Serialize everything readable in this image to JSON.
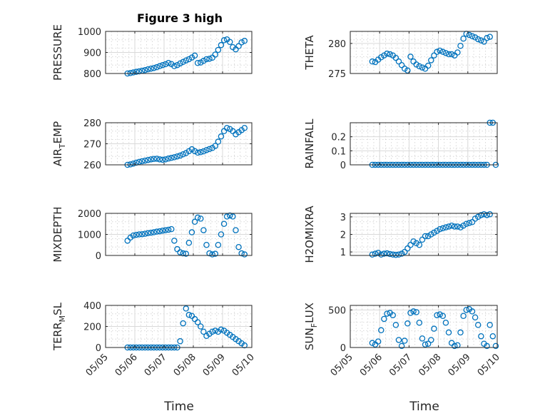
{
  "chart_data": {
    "type": "scatter",
    "title": "Figure 3 high",
    "marker": "circle",
    "color": "#0072bd",
    "grid": "major and minor",
    "x_axis": {
      "label": "Time",
      "ticks": [
        "05/05",
        "05/06",
        "05/07",
        "05/08",
        "05/09",
        "05/10"
      ],
      "range_days": [
        0,
        5
      ]
    },
    "panels": [
      {
        "id": "pressure",
        "ylabel": "PRESSURE",
        "ylim": [
          800,
          1000
        ],
        "yticks": [
          800,
          900,
          1000
        ],
        "x": [
          0.75,
          0.85,
          0.95,
          1.05,
          1.15,
          1.25,
          1.35,
          1.45,
          1.55,
          1.65,
          1.75,
          1.85,
          1.95,
          2.05,
          2.15,
          2.25,
          2.35,
          2.45,
          2.55,
          2.65,
          2.75,
          2.85,
          2.95,
          3.05,
          3.15,
          3.25,
          3.35,
          3.45,
          3.55,
          3.65,
          3.75,
          3.85,
          3.95,
          4.05,
          4.15,
          4.25,
          4.35,
          4.45,
          4.55,
          4.65,
          4.75
        ],
        "y": [
          800,
          802,
          805,
          808,
          810,
          813,
          816,
          820,
          823,
          826,
          830,
          835,
          840,
          844,
          850,
          845,
          835,
          840,
          848,
          855,
          862,
          868,
          876,
          885,
          850,
          852,
          860,
          868,
          870,
          875,
          890,
          912,
          935,
          958,
          962,
          950,
          925,
          915,
          930,
          948,
          955
        ]
      },
      {
        "id": "theta",
        "ylabel": "THETA",
        "ylim": [
          275,
          282
        ],
        "yticks": [
          275,
          280
        ],
        "x": [
          0.75,
          0.85,
          0.95,
          1.05,
          1.15,
          1.25,
          1.35,
          1.45,
          1.55,
          1.65,
          1.75,
          1.85,
          1.95,
          2.05,
          2.15,
          2.25,
          2.35,
          2.45,
          2.55,
          2.65,
          2.75,
          2.85,
          2.95,
          3.05,
          3.15,
          3.25,
          3.35,
          3.45,
          3.55,
          3.65,
          3.75,
          3.85,
          3.95,
          4.05,
          4.15,
          4.25,
          4.35,
          4.45,
          4.55,
          4.65,
          4.75
        ],
        "y": [
          277.0,
          276.9,
          277.3,
          277.7,
          278.0,
          278.3,
          278.2,
          278.0,
          277.6,
          277.0,
          276.4,
          275.8,
          275.5,
          277.8,
          277.0,
          276.5,
          276.2,
          276.0,
          275.8,
          276.3,
          277.2,
          278.0,
          278.6,
          278.8,
          278.6,
          278.4,
          278.2,
          278.2,
          278.0,
          278.5,
          279.6,
          280.8,
          281.6,
          281.4,
          281.2,
          281.0,
          280.7,
          280.5,
          280.3,
          280.9,
          281.1
        ]
      },
      {
        "id": "air_temp",
        "ylabel": "AIR_TEMP",
        "ylim": [
          260,
          280
        ],
        "yticks": [
          260,
          270,
          280
        ],
        "x": [
          0.75,
          0.85,
          0.95,
          1.05,
          1.15,
          1.25,
          1.35,
          1.45,
          1.55,
          1.65,
          1.75,
          1.85,
          1.95,
          2.05,
          2.15,
          2.25,
          2.35,
          2.45,
          2.55,
          2.65,
          2.75,
          2.85,
          2.95,
          3.05,
          3.15,
          3.25,
          3.35,
          3.45,
          3.55,
          3.65,
          3.75,
          3.85,
          3.95,
          4.05,
          4.15,
          4.25,
          4.35,
          4.45,
          4.55,
          4.65,
          4.75
        ],
        "y": [
          260.0,
          260.2,
          260.6,
          261.0,
          261.4,
          261.7,
          262.0,
          262.3,
          262.6,
          262.8,
          262.9,
          262.6,
          262.4,
          262.6,
          263.0,
          263.3,
          263.6,
          264.0,
          264.4,
          265.0,
          265.6,
          266.5,
          267.4,
          266.5,
          265.8,
          266.0,
          266.4,
          267.0,
          267.5,
          268.0,
          269.0,
          271.0,
          273.5,
          276.0,
          277.5,
          277.0,
          276.0,
          274.5,
          275.5,
          276.5,
          277.5
        ]
      },
      {
        "id": "rainfall",
        "ylabel": "RAINFALL",
        "ylim": [
          0,
          0.3
        ],
        "yticks": [
          0,
          0.1,
          0.2
        ],
        "x": [
          0.75,
          0.85,
          0.95,
          1.05,
          1.15,
          1.25,
          1.35,
          1.45,
          1.55,
          1.65,
          1.75,
          1.85,
          1.95,
          2.05,
          2.15,
          2.25,
          2.35,
          2.45,
          2.55,
          2.65,
          2.75,
          2.85,
          2.95,
          3.05,
          3.15,
          3.25,
          3.35,
          3.45,
          3.55,
          3.65,
          3.75,
          3.85,
          3.95,
          4.05,
          4.15,
          4.25,
          4.35,
          4.45,
          4.55,
          4.65,
          4.75,
          4.85,
          4.95
        ],
        "y": [
          0,
          0,
          0,
          0,
          0,
          0,
          0,
          0,
          0,
          0,
          0,
          0,
          0,
          0,
          0,
          0,
          0,
          0,
          0,
          0,
          0,
          0,
          0,
          0,
          0,
          0,
          0,
          0,
          0,
          0,
          0,
          0,
          0,
          0,
          0,
          0,
          0,
          0,
          0,
          0,
          0.3,
          0.3,
          0
        ]
      },
      {
        "id": "mixdepth",
        "ylabel": "MIXDEPTH",
        "ylim": [
          0,
          2000
        ],
        "yticks": [
          0,
          1000,
          2000
        ],
        "x": [
          0.75,
          0.85,
          0.95,
          1.05,
          1.15,
          1.25,
          1.35,
          1.45,
          1.55,
          1.65,
          1.75,
          1.85,
          1.95,
          2.05,
          2.15,
          2.25,
          2.35,
          2.45,
          2.55,
          2.65,
          2.75,
          2.85,
          2.95,
          3.05,
          3.15,
          3.25,
          3.35,
          3.45,
          3.55,
          3.65,
          3.75,
          3.85,
          3.95,
          4.05,
          4.15,
          4.25,
          4.35,
          4.45,
          4.55,
          4.65,
          4.75
        ],
        "y": [
          700,
          850,
          950,
          980,
          1000,
          1010,
          1030,
          1060,
          1080,
          1100,
          1130,
          1150,
          1180,
          1200,
          1220,
          1250,
          700,
          300,
          150,
          100,
          80,
          600,
          1100,
          1600,
          1800,
          1750,
          1200,
          500,
          100,
          50,
          80,
          500,
          1000,
          1500,
          1850,
          1900,
          1850,
          1200,
          400,
          100,
          50
        ]
      },
      {
        "id": "h2omixra",
        "ylabel": "H2OMIXRA",
        "ylim": [
          0.8,
          3.2
        ],
        "yticks": [
          1,
          2,
          3
        ],
        "x": [
          0.75,
          0.85,
          0.95,
          1.05,
          1.15,
          1.25,
          1.35,
          1.45,
          1.55,
          1.65,
          1.75,
          1.85,
          1.95,
          2.05,
          2.15,
          2.25,
          2.35,
          2.45,
          2.55,
          2.65,
          2.75,
          2.85,
          2.95,
          3.05,
          3.15,
          3.25,
          3.35,
          3.45,
          3.55,
          3.65,
          3.75,
          3.85,
          3.95,
          4.05,
          4.15,
          4.25,
          4.35,
          4.45,
          4.55,
          4.65,
          4.75
        ],
        "y": [
          0.85,
          0.9,
          0.95,
          0.85,
          0.9,
          0.92,
          0.88,
          0.85,
          0.83,
          0.85,
          0.9,
          1.0,
          1.2,
          1.4,
          1.6,
          1.5,
          1.4,
          1.7,
          1.9,
          1.9,
          2.0,
          2.1,
          2.2,
          2.3,
          2.35,
          2.4,
          2.45,
          2.5,
          2.45,
          2.45,
          2.4,
          2.5,
          2.6,
          2.65,
          2.7,
          2.9,
          3.0,
          3.1,
          3.15,
          3.1,
          3.15
        ]
      },
      {
        "id": "terr_msl",
        "ylabel": "TERR_MSL",
        "ylim": [
          0,
          400
        ],
        "yticks": [
          0,
          200,
          400
        ],
        "x": [
          0.75,
          0.85,
          0.95,
          1.05,
          1.15,
          1.25,
          1.35,
          1.45,
          1.55,
          1.65,
          1.75,
          1.85,
          1.95,
          2.05,
          2.15,
          2.25,
          2.35,
          2.45,
          2.55,
          2.65,
          2.75,
          2.85,
          2.95,
          3.05,
          3.15,
          3.25,
          3.35,
          3.45,
          3.55,
          3.65,
          3.75,
          3.85,
          3.95,
          4.05,
          4.15,
          4.25,
          4.35,
          4.45,
          4.55,
          4.65,
          4.75
        ],
        "y": [
          0,
          0,
          0,
          0,
          0,
          0,
          0,
          0,
          0,
          0,
          0,
          0,
          0,
          0,
          0,
          0,
          0,
          0,
          60,
          230,
          370,
          310,
          300,
          270,
          240,
          200,
          150,
          110,
          130,
          150,
          160,
          150,
          170,
          160,
          140,
          120,
          100,
          80,
          60,
          40,
          20
        ]
      },
      {
        "id": "sun_flux",
        "ylabel": "SUN_FLUX",
        "ylim": [
          0,
          560
        ],
        "yticks": [
          0,
          500
        ],
        "x": [
          0.75,
          0.85,
          0.95,
          1.05,
          1.15,
          1.25,
          1.35,
          1.45,
          1.55,
          1.65,
          1.75,
          1.85,
          1.95,
          2.05,
          2.15,
          2.25,
          2.35,
          2.45,
          2.55,
          2.65,
          2.75,
          2.85,
          2.95,
          3.05,
          3.15,
          3.25,
          3.35,
          3.45,
          3.55,
          3.65,
          3.75,
          3.85,
          3.95,
          4.05,
          4.15,
          4.25,
          4.35,
          4.45,
          4.55,
          4.65,
          4.75,
          4.85,
          4.95
        ],
        "y": [
          60,
          40,
          80,
          230,
          380,
          450,
          460,
          430,
          300,
          100,
          20,
          90,
          320,
          460,
          480,
          470,
          330,
          120,
          40,
          50,
          100,
          250,
          430,
          440,
          420,
          330,
          200,
          60,
          20,
          30,
          200,
          420,
          500,
          510,
          480,
          400,
          300,
          150,
          50,
          20,
          300,
          150,
          20
        ]
      }
    ]
  }
}
